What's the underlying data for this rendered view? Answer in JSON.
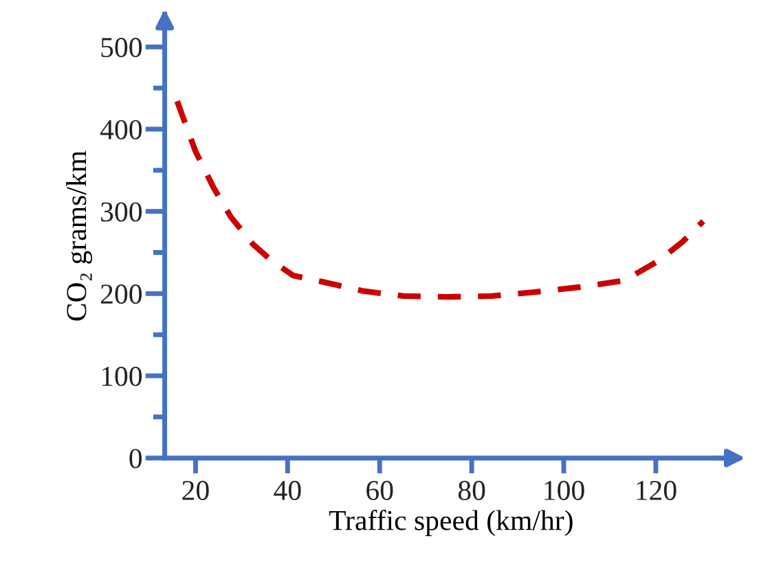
{
  "chart_data": {
    "type": "line",
    "xlabel": "Traffic speed (km/hr)",
    "ylabel": "CO₂ grams/km",
    "x": [
      16.0,
      20,
      23.9,
      27.7,
      32.5,
      36.3,
      41.2,
      47.9,
      56.5,
      65.2,
      74.8,
      84.4,
      94.0,
      103.6,
      113.2,
      120.9,
      125.8,
      130.3
    ],
    "series": [
      {
        "color": "#cc0000",
        "values": [
          434,
          373,
          329,
          293,
          260,
          241,
          222,
          214,
          203,
          197,
          196,
          197,
          202,
          208,
          216,
          241,
          263,
          288
        ]
      }
    ],
    "line_style": "dashed",
    "marker": "none",
    "grid": false,
    "legend": false,
    "xlim": [
      13.3,
      137.8
    ],
    "ylim": [
      0,
      540
    ],
    "xticks": [
      20,
      40,
      60,
      80,
      100,
      120
    ],
    "yticks": [
      0,
      {
        "value": 50,
        "label": null
      },
      100,
      {
        "value": 150,
        "label": null
      },
      200,
      {
        "value": 250,
        "label": null
      },
      300,
      {
        "value": 350,
        "label": null
      },
      400,
      {
        "value": 450,
        "label": null
      },
      500
    ]
  }
}
